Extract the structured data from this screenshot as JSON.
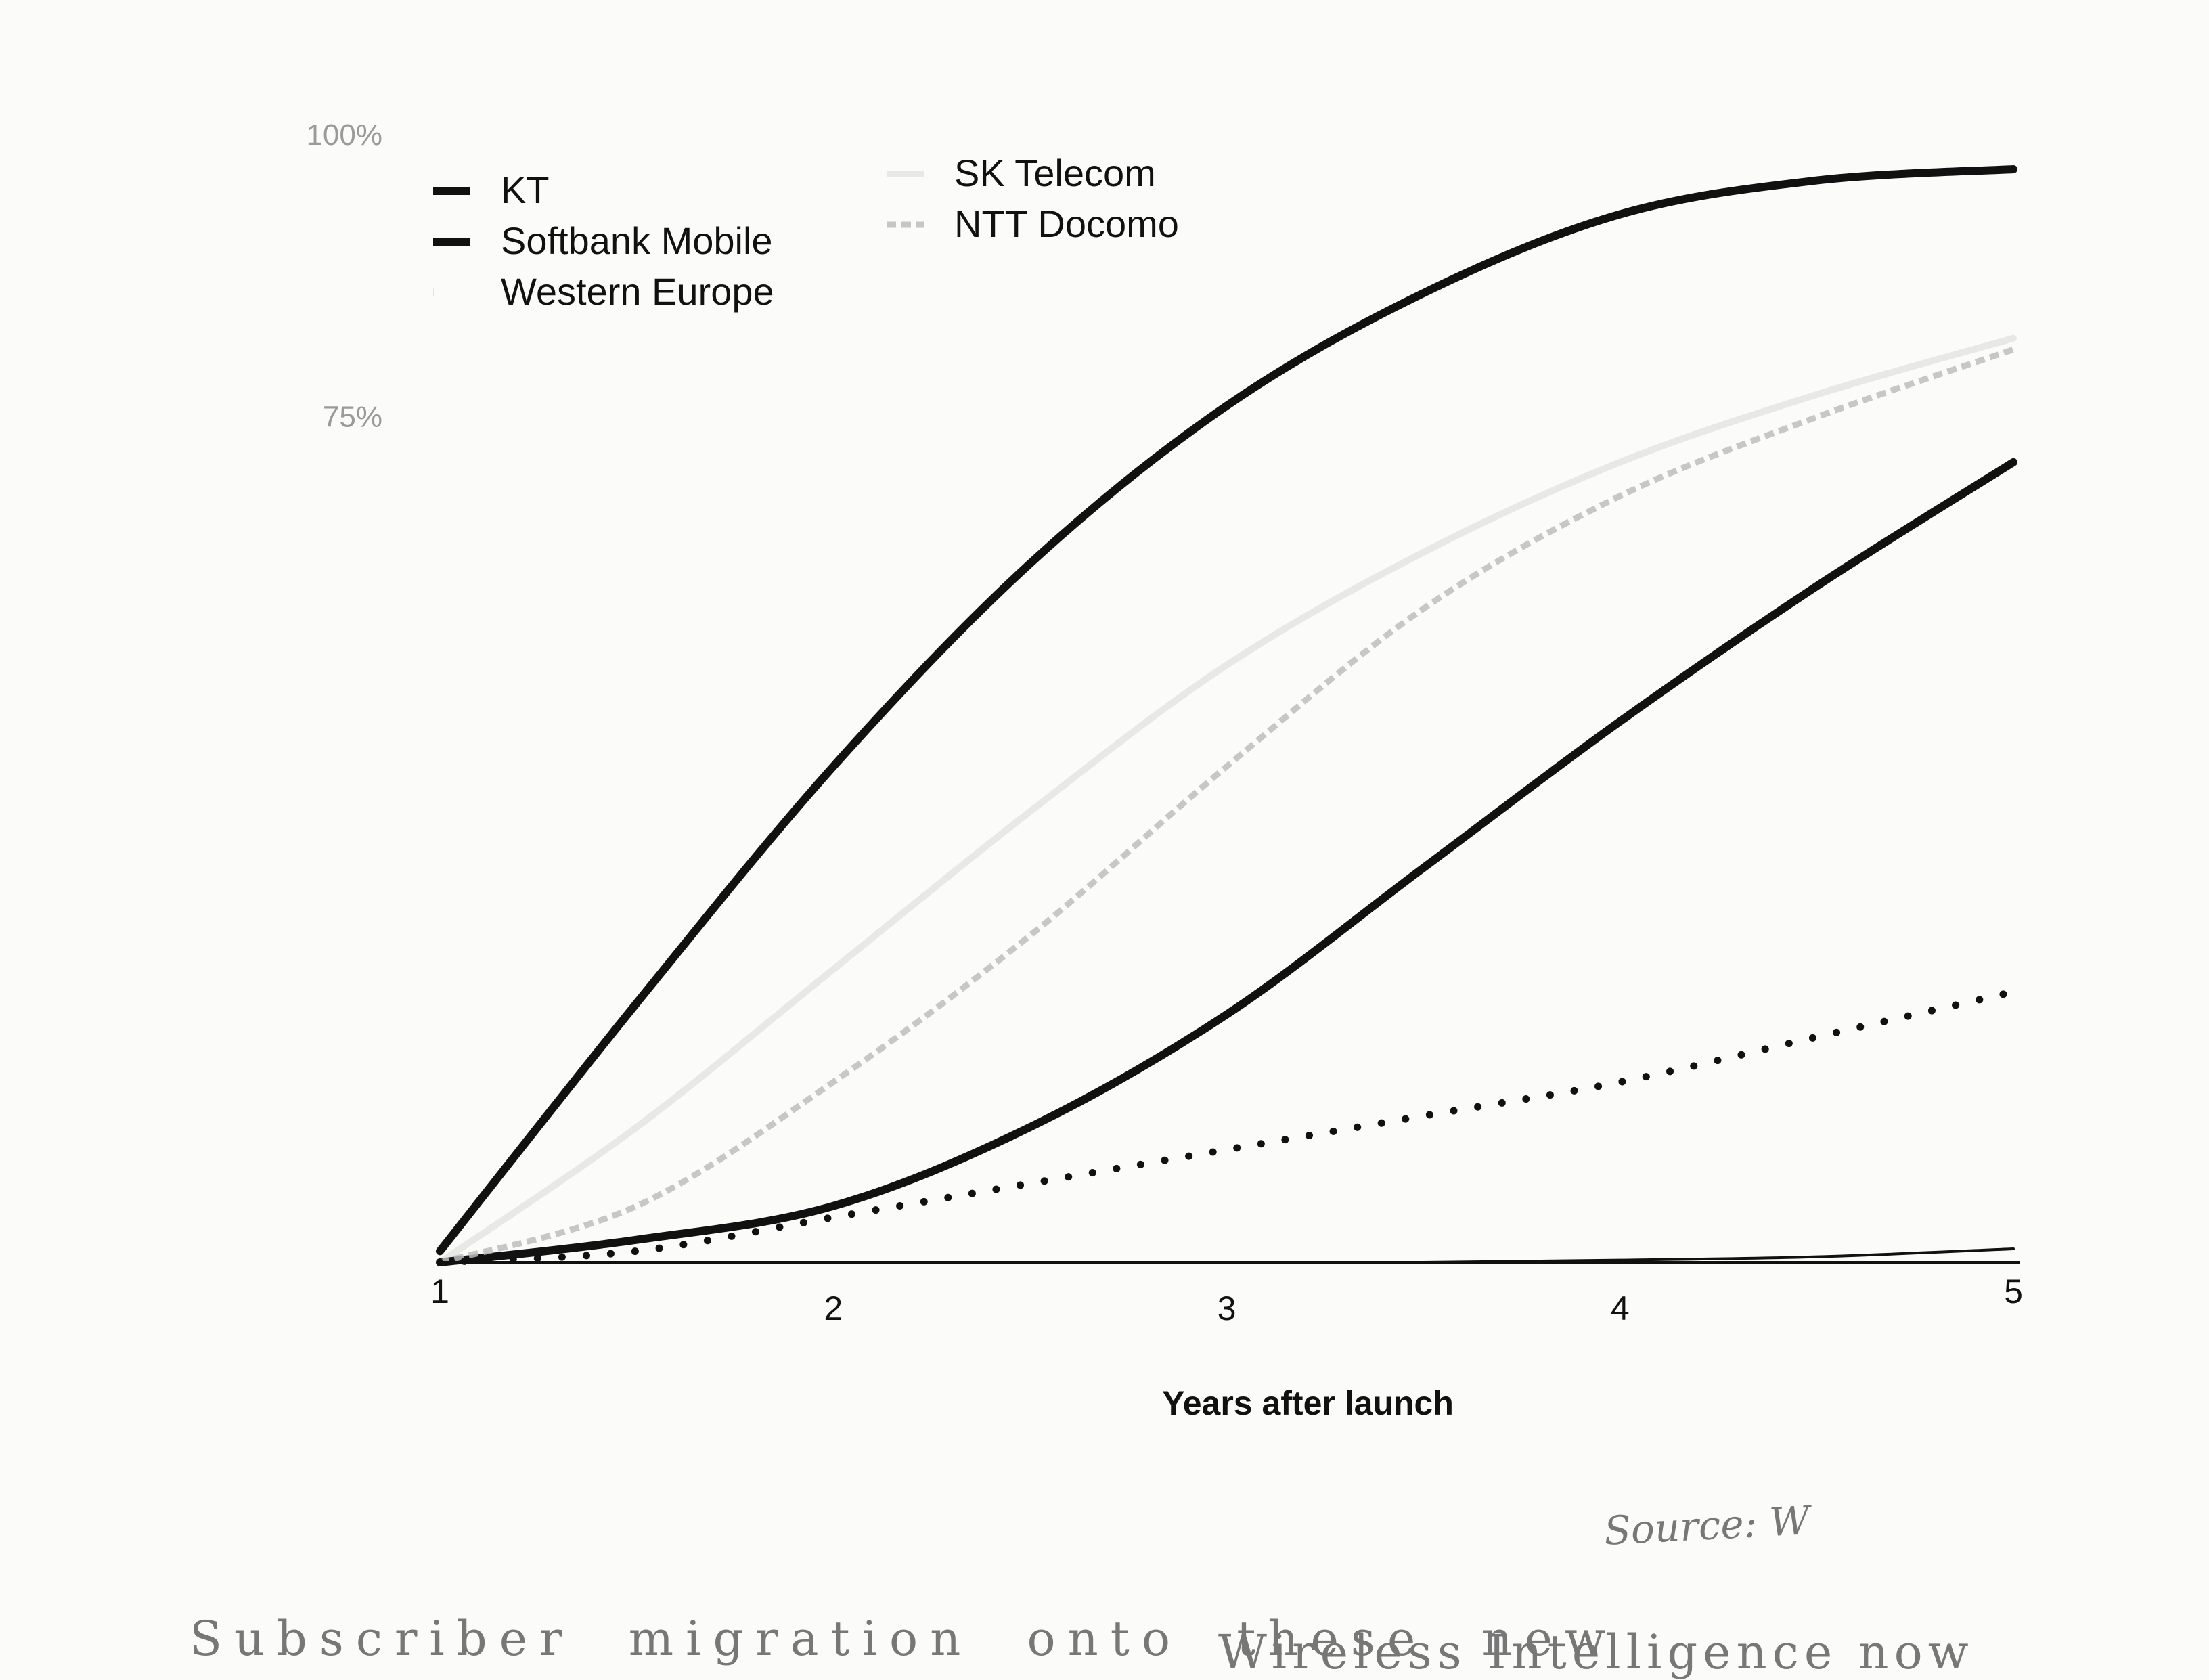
{
  "chart_data": {
    "type": "line",
    "title": "",
    "xlabel": "Years after launch",
    "ylabel": "",
    "x": [
      1,
      1.5,
      2,
      2.5,
      3,
      3.5,
      4,
      4.5,
      5
    ],
    "xlim": [
      1,
      5
    ],
    "ylim": [
      0,
      100
    ],
    "x_ticks": [
      "1",
      "2",
      "3",
      "4",
      "5"
    ],
    "y_ticks": [
      "100%",
      "75%"
    ],
    "grid": false,
    "legend_position": "top-left",
    "series": [
      {
        "name": "KT",
        "style": "thick-solid",
        "color": "#111111",
        "values": [
          1,
          23,
          44,
          62,
          76,
          86,
          93,
          96,
          97
        ]
      },
      {
        "name": "SK Telecom",
        "style": "faint-light",
        "color": "#d9d9d9",
        "values": [
          0,
          12,
          26,
          40,
          53,
          63,
          71,
          77,
          82
        ]
      },
      {
        "name": "Softbank Mobile",
        "style": "thick-solid",
        "color": "#111111",
        "values": [
          0,
          2,
          5,
          12,
          22,
          35,
          48,
          60,
          71
        ]
      },
      {
        "name": "NTT Docomo",
        "style": "mottled-gray",
        "color": "#bdbdbd",
        "values": [
          0,
          5,
          16,
          29,
          44,
          58,
          68,
          75,
          81
        ]
      },
      {
        "name": "Western Europe",
        "style": "dotted",
        "color": "#111111",
        "values": [
          0,
          1,
          4,
          7,
          10,
          13,
          16,
          20,
          24
        ]
      },
      {
        "name": "",
        "style": "thin-solid",
        "color": "#111111",
        "values": [
          0,
          0,
          0,
          0,
          0,
          0,
          0.2,
          0.5,
          1.2
        ]
      }
    ]
  },
  "footer": {
    "source": "Source: W",
    "body_left": "Subscriber migration onto these new",
    "body_right": "Wireless Intelligence now"
  }
}
